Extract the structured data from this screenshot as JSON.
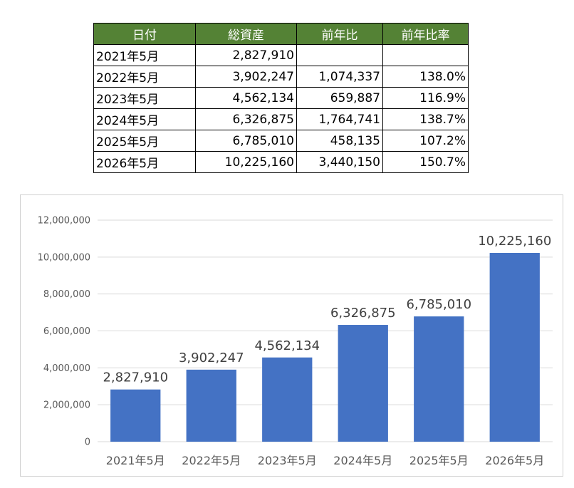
{
  "table": {
    "headers": [
      "日付",
      "総資産",
      "前年比",
      "前年比率"
    ],
    "rows": [
      [
        "2021年5月",
        "2,827,910",
        "",
        ""
      ],
      [
        "2022年5月",
        "3,902,247",
        "1,074,337",
        "138.0%"
      ],
      [
        "2023年5月",
        "4,562,134",
        "659,887",
        "116.9%"
      ],
      [
        "2024年5月",
        "6,326,875",
        "1,764,741",
        "138.7%"
      ],
      [
        "2025年5月",
        "6,785,010",
        "458,135",
        "107.2%"
      ],
      [
        "2026年5月",
        "10,225,160",
        "3,440,150",
        "150.7%"
      ]
    ],
    "header_bg": "#548235",
    "header_text_color": "#ffffff"
  },
  "chart_data": {
    "type": "bar",
    "categories": [
      "2021年5月",
      "2022年5月",
      "2023年5月",
      "2024年5月",
      "2025年5月",
      "2026年5月"
    ],
    "values": [
      2827910,
      3902247,
      4562134,
      6326875,
      6785010,
      10225160
    ],
    "data_labels": [
      "2,827,910",
      "3,902,247",
      "4,562,134",
      "6,326,875",
      "6,785,010",
      "10,225,160"
    ],
    "ylim": [
      0,
      12000000
    ],
    "yticks": [
      0,
      2000000,
      4000000,
      6000000,
      8000000,
      10000000,
      12000000
    ],
    "ytick_labels": [
      "0",
      "2,000,000",
      "4,000,000",
      "6,000,000",
      "8,000,000",
      "10,000,000",
      "12,000,000"
    ],
    "title": "",
    "xlabel": "",
    "ylabel": "",
    "grid": true,
    "legend": "none",
    "bar_color": "#4472c4",
    "grid_color": "#d9d9d9",
    "axis_text_color": "#595959"
  }
}
